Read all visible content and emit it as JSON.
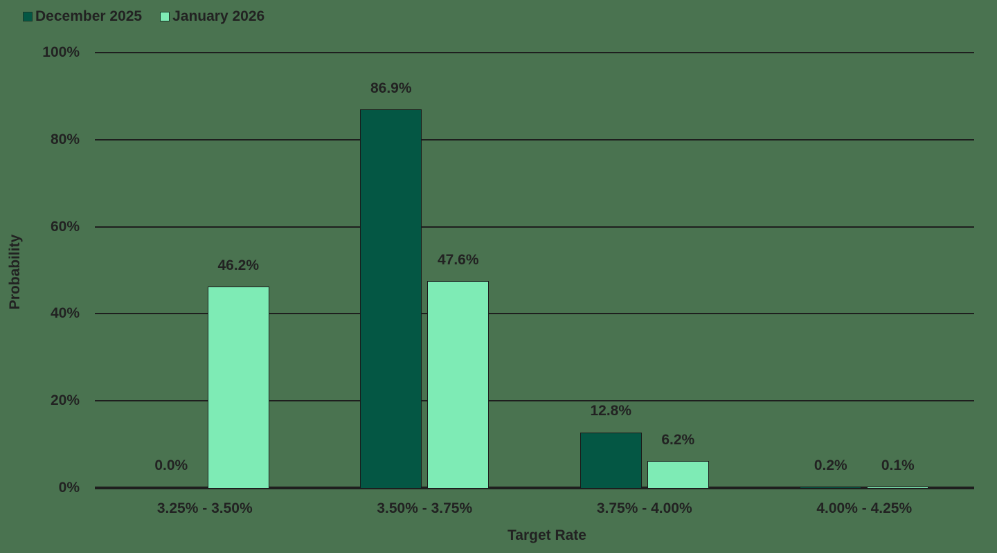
{
  "legend": [
    {
      "label": "December 2025",
      "color": "#045744"
    },
    {
      "label": "January 2026",
      "color": "#7eebb5"
    }
  ],
  "axes": {
    "ylabel": "Probability",
    "xlabel": "Target Rate",
    "yticks": [
      "0%",
      "20%",
      "40%",
      "60%",
      "80%",
      "100%"
    ]
  },
  "chart_data": {
    "type": "bar",
    "title": "",
    "xlabel": "Target Rate",
    "ylabel": "Probability",
    "ylim": [
      0,
      100
    ],
    "grid": true,
    "legend_position": "top-left",
    "categories": [
      "3.25% - 3.50%",
      "3.50% - 3.75%",
      "3.75% - 4.00%",
      "4.00% - 4.25%"
    ],
    "series": [
      {
        "name": "December 2025",
        "color": "#045744",
        "values": [
          0.0,
          86.9,
          12.8,
          0.2
        ],
        "labels": [
          "0.0%",
          "86.9%",
          "12.8%",
          "0.2%"
        ]
      },
      {
        "name": "January 2026",
        "color": "#7eebb5",
        "values": [
          46.2,
          47.6,
          6.2,
          0.1
        ],
        "labels": [
          "46.2%",
          "47.6%",
          "6.2%",
          "0.1%"
        ]
      }
    ]
  }
}
